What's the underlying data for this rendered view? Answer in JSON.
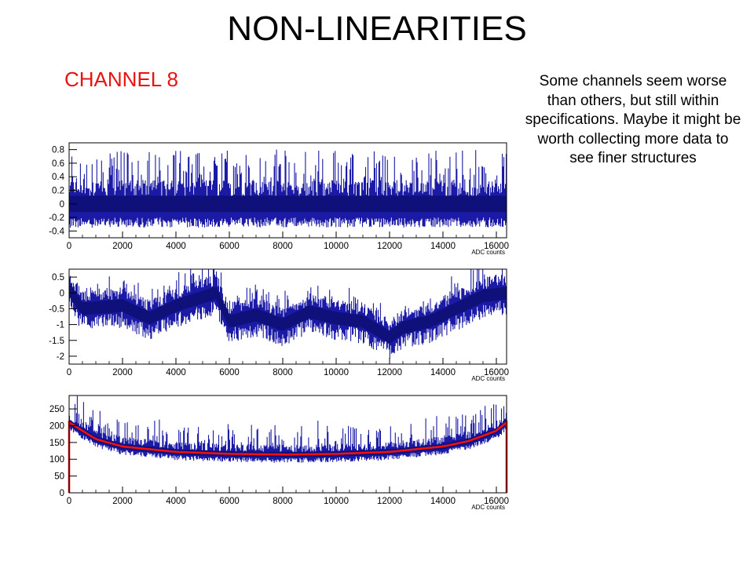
{
  "slide": {
    "title": "NON-LINEARITIES",
    "subtitle": "CHANNEL 8",
    "note": "Some channels seem worse than others, but still within specifications. Maybe it might be worth collecting more data to see finer structures"
  },
  "colors": {
    "hist": "#1a1aa6",
    "fit": "#f01010",
    "subtitle": "#e8130f",
    "frame": "#000000"
  },
  "chart_data": [
    {
      "type": "histogram",
      "title": "",
      "xlabel": "ADC counts",
      "ylabel": "",
      "xlim": [
        0,
        16383
      ],
      "ylim": [
        -0.5,
        0.9
      ],
      "xticks": [
        "0",
        "2000",
        "4000",
        "6000",
        "8000",
        "10000",
        "12000",
        "14000",
        "16000"
      ],
      "yticks": [
        "-0.4",
        "-0.2",
        "0",
        "0.2",
        "0.4",
        "0.6",
        "0.8"
      ],
      "series": [
        {
          "baseline": 0.0,
          "mean": 0.0,
          "noise_range": [
            -0.3,
            0.35
          ],
          "spikes_up_to": 0.8
        }
      ]
    },
    {
      "type": "histogram",
      "title": "",
      "xlabel": "ADC counts",
      "ylabel": "",
      "xlim": [
        0,
        16383
      ],
      "ylim": [
        -2.25,
        0.75
      ],
      "xticks": [
        "0",
        "2000",
        "4000",
        "6000",
        "8000",
        "10000",
        "12000",
        "14000",
        "16000"
      ],
      "yticks": [
        "-2",
        "-1.5",
        "-1",
        "-0.5",
        "0",
        "0.5"
      ],
      "series": [
        {
          "baseline": 0.0,
          "trend_x": [
            0,
            500,
            2000,
            3000,
            4000,
            5500,
            6000,
            7000,
            8000,
            9000,
            10000,
            11000,
            12000,
            12500,
            13500,
            14500,
            15500,
            16383
          ],
          "trend_y": [
            0.2,
            -0.4,
            -0.3,
            -0.7,
            -0.3,
            0.1,
            -0.8,
            -0.6,
            -0.9,
            -0.5,
            -0.7,
            -0.8,
            -1.3,
            -1.0,
            -0.8,
            -0.4,
            0.0,
            0.1
          ]
        }
      ]
    },
    {
      "type": "histogram",
      "title": "",
      "xlabel": "ADC counts",
      "ylabel": "",
      "xlim": [
        0,
        16383
      ],
      "ylim": [
        0,
        290
      ],
      "xticks": [
        "0",
        "2000",
        "4000",
        "6000",
        "8000",
        "10000",
        "12000",
        "14000",
        "16000"
      ],
      "yticks": [
        "0",
        "50",
        "100",
        "150",
        "200",
        "250"
      ],
      "series": [
        {
          "name": "",
          "center": 8200,
          "level_center": 115,
          "level_edge": 210
        },
        {
          "type": "fit",
          "x": [
            0,
            1000,
            2000,
            4000,
            6000,
            8200,
            10000,
            12000,
            14000,
            15000,
            16000,
            16383
          ],
          "y": [
            210,
            160,
            138,
            122,
            116,
            114,
            116,
            122,
            138,
            155,
            185,
            210
          ]
        }
      ]
    }
  ]
}
